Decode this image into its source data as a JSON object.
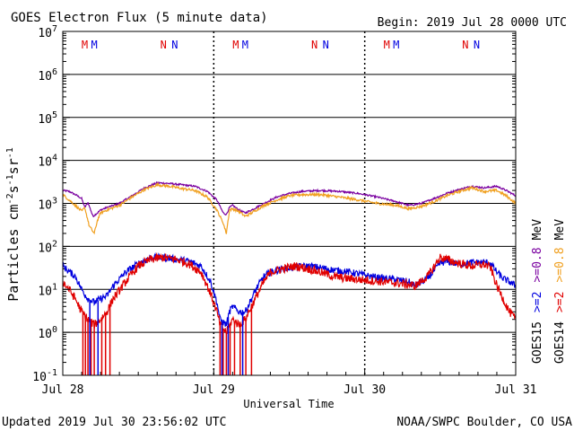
{
  "chart_data": {
    "type": "line",
    "title": "GOES Electron Flux (5 minute data)",
    "begin_label": "Begin: 2019 Jul 28 0000 UTC",
    "xlabel": "Universal Time",
    "ylabel": "Particles cm",
    "ylabel_sup1": "-2",
    "ylabel_mid1": "s",
    "ylabel_sup2": "-1",
    "ylabel_mid2": "sr",
    "ylabel_sup3": "-1",
    "updated_label": "Updated 2019 Jul 30 23:56:02 UTC",
    "credit_label": "NOAA/SWPC Boulder, CO USA",
    "x_range_hours": [
      0,
      72
    ],
    "x_ticks": [
      {
        "hours": 0,
        "label": "Jul 28"
      },
      {
        "hours": 24,
        "label": "Jul 29"
      },
      {
        "hours": 48,
        "label": "Jul 30"
      },
      {
        "hours": 72,
        "label": "Jul 31"
      }
    ],
    "y_scale": "log",
    "y_range_exp": [
      -1,
      7
    ],
    "y_ticks": [
      {
        "exp": 7,
        "base": "10",
        "sup": "7"
      },
      {
        "exp": 6,
        "base": "10",
        "sup": "6"
      },
      {
        "exp": 5,
        "base": "10",
        "sup": "5"
      },
      {
        "exp": 4,
        "base": "10",
        "sup": "4"
      },
      {
        "exp": 3,
        "base": "10",
        "sup": "3"
      },
      {
        "exp": 2,
        "base": "10",
        "sup": "2"
      },
      {
        "exp": 1,
        "base": "10",
        "sup": "1"
      },
      {
        "exp": 0,
        "base": "10",
        "sup": "0"
      },
      {
        "exp": -1,
        "base": "10",
        "sup": "-1"
      }
    ],
    "grid": "horizontal at each decade",
    "threshold_line_exp": 3,
    "markers": [
      {
        "hours": 3.5,
        "text": "M",
        "color": "#e00000"
      },
      {
        "hours": 5.0,
        "text": "M",
        "color": "#0000e0"
      },
      {
        "hours": 16.0,
        "text": "N",
        "color": "#e00000"
      },
      {
        "hours": 17.8,
        "text": "N",
        "color": "#0000e0"
      },
      {
        "hours": 27.5,
        "text": "M",
        "color": "#e00000"
      },
      {
        "hours": 29.0,
        "text": "M",
        "color": "#0000e0"
      },
      {
        "hours": 40.0,
        "text": "N",
        "color": "#e00000"
      },
      {
        "hours": 41.8,
        "text": "N",
        "color": "#0000e0"
      },
      {
        "hours": 51.5,
        "text": "M",
        "color": "#e00000"
      },
      {
        "hours": 53.0,
        "text": "M",
        "color": "#0000e0"
      },
      {
        "hours": 64.0,
        "text": "N",
        "color": "#e00000"
      },
      {
        "hours": 65.8,
        "text": "N",
        "color": "#0000e0"
      }
    ],
    "legend": {
      "placement": "right",
      "goes15": {
        "label": "GOES15",
        "items": [
          {
            "text": ">=2",
            "color": "#0000e0"
          },
          {
            "text": ">=0.8",
            "color": "#7a00a0"
          },
          {
            "text": "MeV",
            "color": "#000000"
          }
        ]
      },
      "goes14": {
        "label": "GOES14",
        "items": [
          {
            "text": ">=2",
            "color": "#e00000"
          },
          {
            "text": ">=0.8",
            "color": "#f0a020"
          },
          {
            "text": "MeV",
            "color": "#000000"
          }
        ]
      }
    },
    "series": [
      {
        "color": "#7a00a0",
        "noise": 0.02,
        "points": [
          [
            0,
            2000
          ],
          [
            1,
            1900
          ],
          [
            2,
            1600
          ],
          [
            3,
            1300
          ],
          [
            3.5,
            800
          ],
          [
            4,
            1050
          ],
          [
            4.8,
            500
          ],
          [
            5.5,
            600
          ],
          [
            6,
            700
          ],
          [
            7,
            800
          ],
          [
            9,
            1000
          ],
          [
            11,
            1500
          ],
          [
            13,
            2300
          ],
          [
            15,
            3000
          ],
          [
            17,
            2900
          ],
          [
            19,
            2700
          ],
          [
            21,
            2500
          ],
          [
            23,
            1900
          ],
          [
            24.5,
            1200
          ],
          [
            25.5,
            600
          ],
          [
            26,
            550
          ],
          [
            26.5,
            800
          ],
          [
            27,
            900
          ],
          [
            28,
            700
          ],
          [
            29,
            600
          ],
          [
            30,
            700
          ],
          [
            32,
            1000
          ],
          [
            34,
            1400
          ],
          [
            36,
            1700
          ],
          [
            38,
            1900
          ],
          [
            41,
            2000
          ],
          [
            44,
            1900
          ],
          [
            47,
            1700
          ],
          [
            50,
            1400
          ],
          [
            53,
            1100
          ],
          [
            55,
            900
          ],
          [
            57,
            1000
          ],
          [
            59,
            1300
          ],
          [
            61,
            1700
          ],
          [
            63,
            2100
          ],
          [
            65,
            2500
          ],
          [
            67,
            2300
          ],
          [
            69,
            2500
          ],
          [
            70.5,
            2000
          ],
          [
            72,
            1500
          ]
        ]
      },
      {
        "color": "#f0a020",
        "noise": 0.03,
        "points": [
          [
            0,
            1600
          ],
          [
            1,
            1200
          ],
          [
            2,
            900
          ],
          [
            3,
            650
          ],
          [
            3.5,
            800
          ],
          [
            4.2,
            300
          ],
          [
            5,
            200
          ],
          [
            5.5,
            400
          ],
          [
            6,
            600
          ],
          [
            7,
            700
          ],
          [
            9,
            900
          ],
          [
            11,
            1400
          ],
          [
            13,
            2100
          ],
          [
            15,
            2700
          ],
          [
            17,
            2500
          ],
          [
            19,
            2200
          ],
          [
            21,
            2000
          ],
          [
            23,
            1400
          ],
          [
            24.5,
            700
          ],
          [
            25.5,
            350
          ],
          [
            26,
            200
          ],
          [
            26.5,
            700
          ],
          [
            27,
            750
          ],
          [
            28,
            650
          ],
          [
            29,
            500
          ],
          [
            30,
            600
          ],
          [
            32,
            900
          ],
          [
            34,
            1200
          ],
          [
            36,
            1500
          ],
          [
            38,
            1600
          ],
          [
            41,
            1600
          ],
          [
            44,
            1400
          ],
          [
            47,
            1200
          ],
          [
            50,
            1000
          ],
          [
            53,
            900
          ],
          [
            55,
            750
          ],
          [
            57,
            850
          ],
          [
            59,
            1100
          ],
          [
            61,
            1500
          ],
          [
            63,
            1900
          ],
          [
            65,
            2300
          ],
          [
            67,
            1900
          ],
          [
            69,
            2000
          ],
          [
            70.5,
            1500
          ],
          [
            72,
            1000
          ]
        ]
      },
      {
        "color": "#0000e0",
        "noise": 0.08,
        "points": [
          [
            0,
            35
          ],
          [
            1,
            26
          ],
          [
            2,
            20
          ],
          [
            3,
            10
          ],
          [
            4,
            6
          ],
          [
            5,
            5
          ],
          [
            6,
            6
          ],
          [
            7,
            7
          ],
          [
            8,
            12
          ],
          [
            10,
            25
          ],
          [
            12,
            40
          ],
          [
            14,
            55
          ],
          [
            16,
            55
          ],
          [
            18,
            50
          ],
          [
            20,
            45
          ],
          [
            22,
            35
          ],
          [
            23.5,
            15
          ],
          [
            24.5,
            5
          ],
          [
            25,
            2
          ],
          [
            26,
            1.5
          ],
          [
            26.5,
            3
          ],
          [
            27,
            4
          ],
          [
            28,
            3
          ],
          [
            29,
            3
          ],
          [
            30,
            6
          ],
          [
            31,
            12
          ],
          [
            32,
            20
          ],
          [
            33,
            25
          ],
          [
            35,
            30
          ],
          [
            37,
            33
          ],
          [
            39,
            35
          ],
          [
            41,
            32
          ],
          [
            43,
            28
          ],
          [
            45,
            26
          ],
          [
            47,
            23
          ],
          [
            49,
            20
          ],
          [
            51,
            18
          ],
          [
            53,
            17
          ],
          [
            55,
            15
          ],
          [
            56,
            12
          ],
          [
            58,
            18
          ],
          [
            60,
            40
          ],
          [
            61,
            45
          ],
          [
            63,
            38
          ],
          [
            65,
            42
          ],
          [
            67,
            43
          ],
          [
            68,
            40
          ],
          [
            69,
            25
          ],
          [
            70,
            18
          ],
          [
            71,
            15
          ],
          [
            72,
            12
          ]
        ]
      },
      {
        "color": "#e00000",
        "noise": 0.1,
        "points": [
          [
            0,
            15
          ],
          [
            1,
            10
          ],
          [
            2,
            6
          ],
          [
            3,
            3
          ],
          [
            4,
            2
          ],
          [
            5,
            1.5
          ],
          [
            6,
            2
          ],
          [
            7,
            3
          ],
          [
            8,
            6
          ],
          [
            10,
            15
          ],
          [
            12,
            35
          ],
          [
            14,
            50
          ],
          [
            16,
            55
          ],
          [
            18,
            50
          ],
          [
            20,
            40
          ],
          [
            22,
            25
          ],
          [
            23.5,
            8
          ],
          [
            24.5,
            3
          ],
          [
            25,
            1.5
          ],
          [
            26,
            1
          ],
          [
            27,
            2
          ],
          [
            28,
            1.5
          ],
          [
            29,
            2
          ],
          [
            30,
            4
          ],
          [
            31,
            8
          ],
          [
            32,
            15
          ],
          [
            33,
            25
          ],
          [
            35,
            30
          ],
          [
            37,
            35
          ],
          [
            39,
            30
          ],
          [
            41,
            25
          ],
          [
            43,
            20
          ],
          [
            45,
            18
          ],
          [
            47,
            17
          ],
          [
            49,
            16
          ],
          [
            51,
            15
          ],
          [
            53,
            14
          ],
          [
            55,
            13
          ],
          [
            56,
            12
          ],
          [
            58,
            20
          ],
          [
            60,
            55
          ],
          [
            61,
            50
          ],
          [
            63,
            40
          ],
          [
            65,
            35
          ],
          [
            67,
            38
          ],
          [
            68,
            32
          ],
          [
            69,
            12
          ],
          [
            70,
            6
          ],
          [
            71,
            3
          ],
          [
            72,
            2
          ]
        ]
      }
    ],
    "dropouts": [
      {
        "color": "#e00000",
        "hours": [
          3.2,
          3.6,
          4.0,
          4.5,
          5.0,
          6.2,
          6.8,
          7.5,
          25.0,
          25.5,
          26.0,
          26.6,
          27.3,
          28.2,
          29.1,
          30.0
        ]
      },
      {
        "color": "#0000e0",
        "hours": [
          4.3,
          5.6,
          25.3,
          26.3,
          28.6
        ]
      }
    ]
  }
}
